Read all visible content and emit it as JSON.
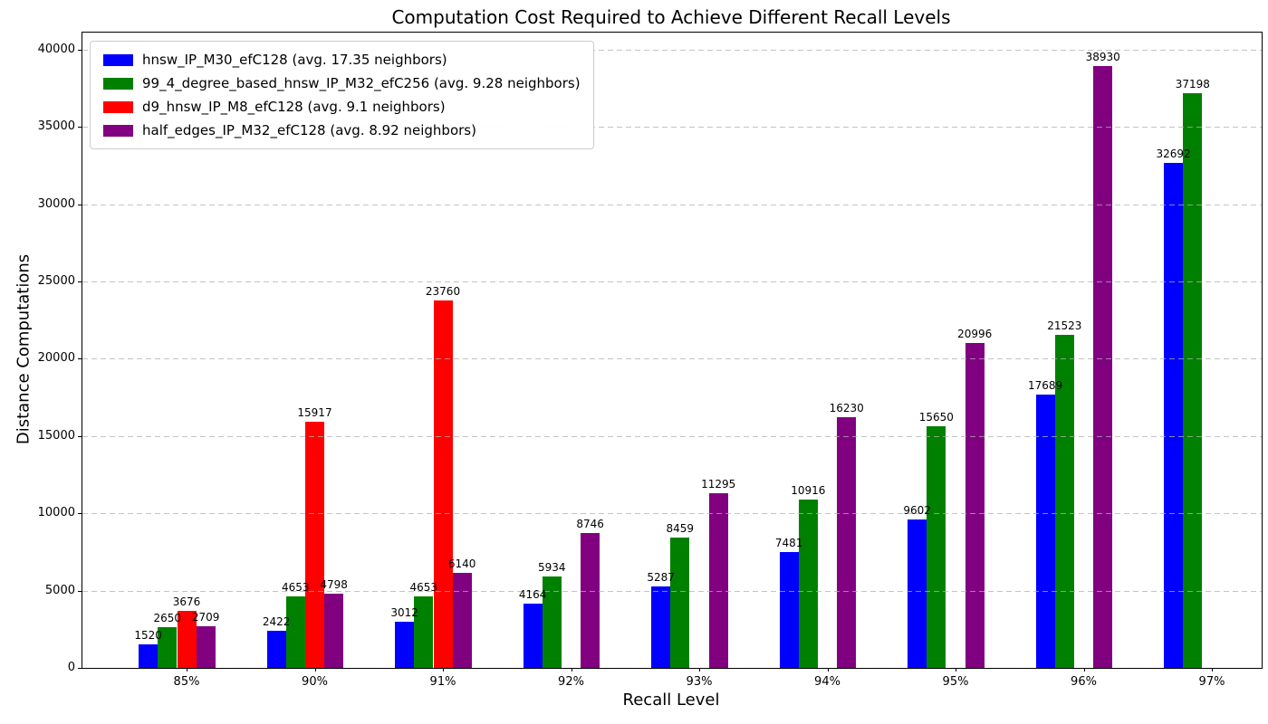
{
  "chart_data": {
    "type": "bar",
    "title": "Computation Cost Required to Achieve Different Recall Levels",
    "xlabel": "Recall Level",
    "ylabel": "Distance Computations",
    "categories": [
      "85%",
      "90%",
      "91%",
      "92%",
      "93%",
      "94%",
      "95%",
      "96%",
      "97%"
    ],
    "series": [
      {
        "name": "hnsw_IP_M30_efC128 (avg. 17.35 neighbors)",
        "color": "#0000ff",
        "values": [
          1520,
          2422,
          3012,
          4164,
          5287,
          7481,
          9602,
          17689,
          32692
        ]
      },
      {
        "name": "99_4_degree_based_hnsw_IP_M32_efC256 (avg. 9.28 neighbors)",
        "color": "#008000",
        "values": [
          2650,
          4653,
          4653,
          5934,
          8459,
          10916,
          15650,
          21523,
          37198
        ]
      },
      {
        "name": "d9_hnsw_IP_M8_efC128 (avg. 9.1 neighbors)",
        "color": "#ff0000",
        "values": [
          3676,
          15917,
          23760,
          null,
          null,
          null,
          null,
          null,
          null
        ]
      },
      {
        "name": "half_edges_IP_M32_efC128 (avg. 8.92 neighbors)",
        "color": "#800080",
        "values": [
          2709,
          4798,
          6140,
          8746,
          11295,
          16230,
          20996,
          38930,
          null
        ]
      }
    ],
    "yticks": [
      0,
      5000,
      10000,
      15000,
      20000,
      25000,
      30000,
      35000,
      40000
    ],
    "ylim": [
      0,
      41100
    ],
    "grid": {
      "axis": "y",
      "style": "dashed",
      "color": "#b0b0b0"
    },
    "legend_position": "upper-left",
    "bar_value_labels": true
  }
}
